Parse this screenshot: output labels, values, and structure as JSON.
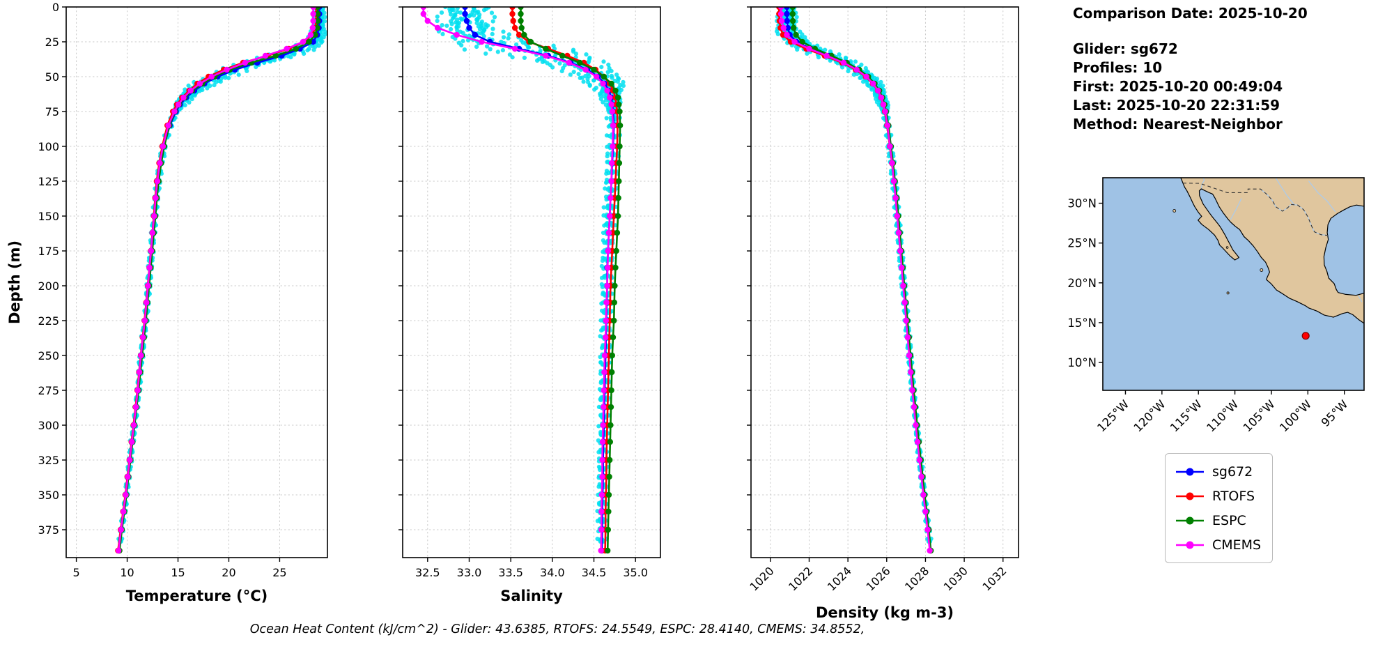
{
  "info_panel": {
    "comparison_date": "Comparison Date: 2025-10-20",
    "glider": "Glider: sg672",
    "profiles": "Profiles: 10",
    "first": "First: 2025-10-20 00:49:04",
    "last": "Last: 2025-10-20 22:31:59",
    "method": "Method: Nearest-Neighbor"
  },
  "footer": "Ocean Heat Content (kJ/cm^2) - Glider: 43.6385,  RTOFS: 24.5549,  ESPC: 28.4140,  CMEMS: 34.8552,",
  "legend": {
    "items": [
      {
        "label": "sg672",
        "color": "#0000ff"
      },
      {
        "label": "RTOFS",
        "color": "#ff0000"
      },
      {
        "label": "ESPC",
        "color": "#008000"
      },
      {
        "label": "CMEMS",
        "color": "#ff00ff"
      }
    ]
  },
  "chart_data": [
    {
      "type": "line",
      "title": "",
      "xlabel": "Temperature (°C)",
      "ylabel": "Depth (m)",
      "xlim": [
        4,
        29.7
      ],
      "ylim": [
        0,
        395
      ],
      "xticks": [
        5,
        10,
        15,
        20,
        25
      ],
      "xtick_labels": [
        "5",
        "10",
        "15",
        "20",
        "25"
      ],
      "yticks": [
        0,
        25,
        50,
        75,
        100,
        125,
        150,
        175,
        200,
        225,
        250,
        275,
        300,
        325,
        350,
        375
      ],
      "grid": true,
      "depths": [
        0,
        5,
        10,
        15,
        20,
        25,
        30,
        35,
        40,
        45,
        50,
        55,
        60,
        65,
        70,
        75,
        85,
        100,
        112,
        125,
        137,
        150,
        162,
        175,
        187,
        200,
        212,
        225,
        237,
        250,
        262,
        275,
        287,
        300,
        312,
        325,
        337,
        350,
        362,
        375,
        390
      ],
      "raw_spread": [
        [
          0,
          0.3
        ],
        [
          20,
          0.55
        ],
        [
          32,
          1.15
        ],
        [
          55,
          0.9
        ],
        [
          75,
          0.18
        ],
        [
          395,
          0.12
        ]
      ],
      "series": [
        {
          "name": "glider-raw",
          "color": "#00dff0",
          "scatter": true,
          "profiles": 10,
          "values_from": "sg672"
        },
        {
          "name": "sg672",
          "color": "#0000ff",
          "values": [
            28.9,
            28.9,
            28.9,
            28.85,
            28.7,
            28.3,
            27.0,
            25.2,
            22.8,
            20.6,
            18.9,
            17.6,
            16.6,
            15.8,
            15.2,
            14.8,
            14.2,
            13.6,
            13.3,
            13.05,
            12.85,
            12.7,
            12.55,
            12.4,
            12.25,
            12.1,
            11.95,
            11.8,
            11.6,
            11.4,
            11.25,
            11.1,
            10.9,
            10.7,
            10.5,
            10.3,
            10.1,
            9.9,
            9.7,
            9.45,
            9.2
          ]
        },
        {
          "name": "RTOFS",
          "color": "#ff0000",
          "values": [
            28.6,
            28.6,
            28.6,
            28.5,
            28.2,
            27.4,
            25.9,
            23.8,
            21.4,
            19.5,
            18.0,
            16.9,
            16.1,
            15.4,
            14.9,
            14.5,
            13.95,
            13.45,
            13.15,
            12.9,
            12.75,
            12.62,
            12.48,
            12.33,
            12.18,
            12.02,
            11.87,
            11.7,
            11.52,
            11.33,
            11.17,
            11.0,
            10.82,
            10.62,
            10.42,
            10.22,
            10.02,
            9.82,
            9.6,
            9.35,
            9.1
          ]
        },
        {
          "name": "ESPC",
          "color": "#008000",
          "values": [
            28.75,
            28.75,
            28.75,
            28.7,
            28.5,
            27.9,
            26.6,
            24.6,
            22.2,
            20.1,
            18.6,
            17.4,
            16.4,
            15.65,
            15.1,
            14.7,
            14.15,
            13.65,
            13.35,
            13.1,
            12.92,
            12.78,
            12.62,
            12.47,
            12.32,
            12.16,
            12.0,
            11.85,
            11.66,
            11.47,
            11.3,
            11.13,
            10.93,
            10.73,
            10.53,
            10.33,
            10.13,
            9.93,
            9.72,
            9.48,
            9.25
          ]
        },
        {
          "name": "CMEMS",
          "color": "#ff00ff",
          "values": [
            28.3,
            28.3,
            28.3,
            28.25,
            28.05,
            27.3,
            25.7,
            23.6,
            21.6,
            19.8,
            18.3,
            17.15,
            16.25,
            15.55,
            15.05,
            14.65,
            14.05,
            13.52,
            13.22,
            12.97,
            12.8,
            12.66,
            12.5,
            12.36,
            12.2,
            12.05,
            11.9,
            11.74,
            11.55,
            11.36,
            11.2,
            11.04,
            10.86,
            10.66,
            10.46,
            10.26,
            10.06,
            9.86,
            9.64,
            9.4,
            9.15
          ]
        }
      ]
    },
    {
      "type": "line",
      "title": "",
      "xlabel": "Salinity",
      "ylabel": "Depth (m)",
      "xlim": [
        32.2,
        35.3
      ],
      "ylim": [
        0,
        395
      ],
      "xticks": [
        32.5,
        33.0,
        33.5,
        34.0,
        34.5,
        35.0
      ],
      "xtick_labels": [
        "32.5",
        "33.0",
        "33.5",
        "34.0",
        "34.5",
        "35.0"
      ],
      "yticks": [
        0,
        25,
        50,
        75,
        100,
        125,
        150,
        175,
        200,
        225,
        250,
        275,
        300,
        325,
        350,
        375
      ],
      "grid": true,
      "depths": [
        0,
        5,
        10,
        15,
        20,
        25,
        30,
        35,
        40,
        45,
        50,
        55,
        60,
        65,
        70,
        75,
        85,
        100,
        112,
        125,
        137,
        150,
        162,
        175,
        187,
        200,
        212,
        225,
        237,
        250,
        262,
        275,
        287,
        300,
        312,
        325,
        337,
        350,
        362,
        375,
        390
      ],
      "raw_spread": [
        [
          0,
          0.22
        ],
        [
          20,
          0.3
        ],
        [
          30,
          0.5
        ],
        [
          45,
          0.25
        ],
        [
          70,
          0.06
        ],
        [
          395,
          0.04
        ]
      ],
      "series": [
        {
          "name": "glider-raw",
          "color": "#00dff0",
          "scatter": true,
          "profiles": 10,
          "values_from": "sg672"
        },
        {
          "name": "sg672",
          "color": "#0000ff",
          "values": [
            32.95,
            32.95,
            32.97,
            33.0,
            33.07,
            33.25,
            33.6,
            33.95,
            34.22,
            34.42,
            34.55,
            34.63,
            34.68,
            34.71,
            34.72,
            34.73,
            34.74,
            34.73,
            34.72,
            34.71,
            34.7,
            34.69,
            34.68,
            34.67,
            34.66,
            34.66,
            34.655,
            34.65,
            34.645,
            34.64,
            34.635,
            34.63,
            34.625,
            34.62,
            34.615,
            34.61,
            34.61,
            34.605,
            34.6,
            34.6,
            34.595
          ]
        },
        {
          "name": "RTOFS",
          "color": "#ff0000",
          "values": [
            33.52,
            33.52,
            33.53,
            33.55,
            33.6,
            33.72,
            33.95,
            34.18,
            34.38,
            34.52,
            34.62,
            34.69,
            34.73,
            34.76,
            34.77,
            34.78,
            34.785,
            34.78,
            34.77,
            34.76,
            34.75,
            34.74,
            34.73,
            34.72,
            34.71,
            34.7,
            34.695,
            34.69,
            34.685,
            34.68,
            34.675,
            34.67,
            34.665,
            34.66,
            34.655,
            34.65,
            34.65,
            34.645,
            34.64,
            34.64,
            34.635
          ]
        },
        {
          "name": "ESPC",
          "color": "#008000",
          "values": [
            33.62,
            33.62,
            33.62,
            33.63,
            33.66,
            33.74,
            33.92,
            34.12,
            34.33,
            34.5,
            34.62,
            34.71,
            34.76,
            34.79,
            34.8,
            34.81,
            34.815,
            34.81,
            34.805,
            34.8,
            34.795,
            34.79,
            34.78,
            34.77,
            34.76,
            34.75,
            34.745,
            34.74,
            34.73,
            34.72,
            34.715,
            34.71,
            34.705,
            34.7,
            34.695,
            34.69,
            34.685,
            34.68,
            34.675,
            34.67,
            34.665
          ]
        },
        {
          "name": "CMEMS",
          "color": "#ff00ff",
          "values": [
            32.45,
            32.45,
            32.5,
            32.62,
            32.85,
            33.15,
            33.55,
            33.92,
            34.2,
            34.4,
            34.53,
            34.61,
            34.66,
            34.69,
            34.71,
            34.72,
            34.73,
            34.725,
            34.715,
            34.71,
            34.7,
            34.69,
            34.68,
            34.67,
            34.665,
            34.66,
            34.65,
            34.645,
            34.64,
            34.63,
            34.625,
            34.62,
            34.615,
            34.61,
            34.605,
            34.6,
            34.6,
            34.595,
            34.59,
            34.59,
            34.585
          ]
        }
      ]
    },
    {
      "type": "line",
      "title": "",
      "xlabel": "Density (kg m-3)",
      "ylabel": "Depth (m)",
      "xlim": [
        1019.0,
        1032.8
      ],
      "ylim": [
        0,
        395
      ],
      "xticks": [
        1020,
        1022,
        1024,
        1026,
        1028,
        1030,
        1032
      ],
      "xtick_labels": [
        "1020",
        "1022",
        "1024",
        "1026",
        "1028",
        "1030",
        "1032"
      ],
      "yticks": [
        0,
        25,
        50,
        75,
        100,
        125,
        150,
        175,
        200,
        225,
        250,
        275,
        300,
        325,
        350,
        375
      ],
      "grid": true,
      "depths": [
        0,
        5,
        10,
        15,
        20,
        25,
        30,
        35,
        40,
        45,
        50,
        55,
        60,
        65,
        70,
        75,
        85,
        100,
        112,
        125,
        137,
        150,
        162,
        175,
        187,
        200,
        212,
        225,
        237,
        250,
        262,
        275,
        287,
        300,
        312,
        325,
        337,
        350,
        362,
        375,
        390
      ],
      "raw_spread": [
        [
          0,
          0.3
        ],
        [
          30,
          0.55
        ],
        [
          55,
          0.3
        ],
        [
          80,
          0.1
        ],
        [
          395,
          0.07
        ]
      ],
      "series": [
        {
          "name": "glider-raw",
          "color": "#00dff0",
          "scatter": true,
          "profiles": 10,
          "values_from": "sg672"
        },
        {
          "name": "sg672",
          "color": "#0000ff",
          "values": [
            1020.85,
            1020.85,
            1020.86,
            1020.9,
            1021.0,
            1021.35,
            1022.1,
            1023.0,
            1023.85,
            1024.5,
            1024.98,
            1025.32,
            1025.56,
            1025.72,
            1025.83,
            1025.91,
            1026.03,
            1026.17,
            1026.28,
            1026.38,
            1026.47,
            1026.55,
            1026.63,
            1026.71,
            1026.79,
            1026.87,
            1026.95,
            1027.03,
            1027.11,
            1027.19,
            1027.27,
            1027.35,
            1027.44,
            1027.53,
            1027.62,
            1027.72,
            1027.82,
            1027.92,
            1028.03,
            1028.14,
            1028.25
          ]
        },
        {
          "name": "RTOFS",
          "color": "#ff0000",
          "values": [
            1020.45,
            1020.45,
            1020.47,
            1020.52,
            1020.65,
            1021.05,
            1021.85,
            1022.8,
            1023.7,
            1024.4,
            1024.92,
            1025.28,
            1025.54,
            1025.71,
            1025.82,
            1025.9,
            1026.02,
            1026.16,
            1026.27,
            1026.37,
            1026.46,
            1026.54,
            1026.62,
            1026.7,
            1026.78,
            1026.86,
            1026.94,
            1027.02,
            1027.1,
            1027.18,
            1027.26,
            1027.34,
            1027.43,
            1027.52,
            1027.61,
            1027.71,
            1027.81,
            1027.91,
            1028.02,
            1028.13,
            1028.24
          ]
        },
        {
          "name": "ESPC",
          "color": "#008000",
          "values": [
            1021.15,
            1021.15,
            1021.16,
            1021.2,
            1021.32,
            1021.65,
            1022.3,
            1023.15,
            1023.95,
            1024.58,
            1025.05,
            1025.38,
            1025.62,
            1025.78,
            1025.89,
            1025.97,
            1026.09,
            1026.22,
            1026.33,
            1026.43,
            1026.52,
            1026.6,
            1026.68,
            1026.76,
            1026.83,
            1026.91,
            1026.99,
            1027.07,
            1027.15,
            1027.23,
            1027.31,
            1027.39,
            1027.48,
            1027.57,
            1027.66,
            1027.76,
            1027.86,
            1027.96,
            1028.06,
            1028.17,
            1028.28
          ]
        },
        {
          "name": "CMEMS",
          "color": "#ff00ff",
          "values": [
            1020.55,
            1020.55,
            1020.58,
            1020.68,
            1020.85,
            1021.25,
            1022.0,
            1022.9,
            1023.78,
            1024.45,
            1024.95,
            1025.3,
            1025.55,
            1025.72,
            1025.83,
            1025.92,
            1026.04,
            1026.17,
            1026.28,
            1026.37,
            1026.46,
            1026.54,
            1026.62,
            1026.7,
            1026.77,
            1026.85,
            1026.93,
            1027.0,
            1027.08,
            1027.16,
            1027.24,
            1027.32,
            1027.41,
            1027.5,
            1027.59,
            1027.69,
            1027.79,
            1027.89,
            1028.0,
            1028.11,
            1028.22
          ]
        }
      ]
    },
    {
      "type": "map",
      "extent": {
        "lon": [
          -128.1,
          -92.3
        ],
        "lat": [
          6.5,
          33.2
        ]
      },
      "lon_ticks": [
        -125,
        -120,
        -115,
        -110,
        -105,
        -100,
        -95
      ],
      "lon_tick_labels": [
        "125°W",
        "120°W",
        "115°W",
        "110°W",
        "105°W",
        "100°W",
        "95°W"
      ],
      "lat_ticks": [
        10,
        15,
        20,
        25,
        30
      ],
      "lat_tick_labels": [
        "10°N",
        "15°N",
        "20°N",
        "25°N",
        "30°N"
      ],
      "ocean_color": "#9fc2e5",
      "land_color": "#e0c69e",
      "river_color": "#aecbe8",
      "glider_marker": {
        "lon": -100.3,
        "lat": 13.35,
        "color": "#ff0000"
      }
    }
  ]
}
